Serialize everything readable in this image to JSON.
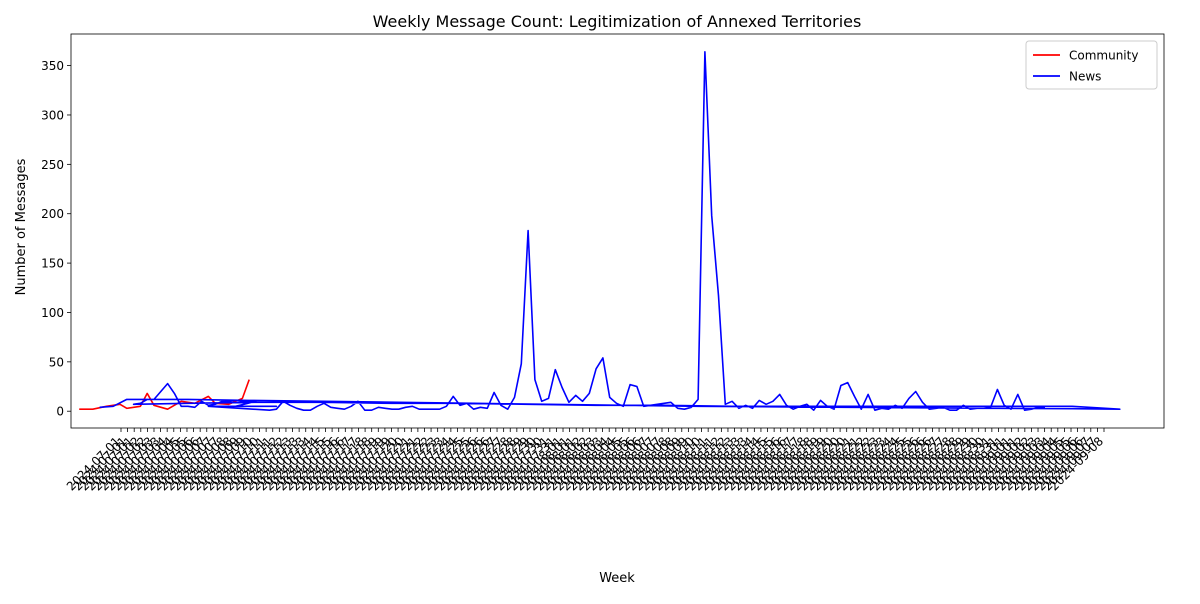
{
  "chart_data": {
    "type": "line",
    "title": "Weekly Message Count: Legitimization of Annexed Territories",
    "xlabel": "Week",
    "ylabel": "Number of Messages",
    "ylim": [
      -17,
      382
    ],
    "yticks": [
      0,
      50,
      100,
      150,
      200,
      250,
      300,
      350
    ],
    "grid": false,
    "legend_position": "top-right",
    "x_start_week": "2024-07-01",
    "x_end_week": "2024-09-08",
    "x_tick_count": 150,
    "series": [
      {
        "name": "Community",
        "color": "#ff0000",
        "points": [
          [
            0,
            2
          ],
          [
            2,
            2
          ],
          [
            4,
            5
          ],
          [
            6,
            7
          ],
          [
            7,
            3
          ],
          [
            9,
            5
          ],
          [
            10,
            18
          ],
          [
            11,
            6
          ],
          [
            13,
            2
          ],
          [
            15,
            10
          ],
          [
            17,
            8
          ],
          [
            19,
            15
          ],
          [
            20,
            8
          ],
          [
            22,
            7
          ],
          [
            24,
            13
          ],
          [
            25,
            32
          ]
        ]
      },
      {
        "name": "News",
        "color": "#0000ff",
        "points": [
          [
            3,
            4
          ],
          [
            5,
            5
          ],
          [
            7,
            12
          ],
          [
            16,
            12
          ],
          [
            25,
            11
          ],
          [
            36,
            10
          ],
          [
            47,
            9
          ],
          [
            58,
            8
          ],
          [
            69,
            7
          ],
          [
            80,
            6
          ],
          [
            91,
            5
          ],
          [
            102,
            4.5
          ],
          [
            113,
            4
          ],
          [
            124,
            3.5
          ],
          [
            135,
            3
          ],
          [
            146,
            2.5
          ],
          [
            153,
            2
          ],
          [
            146,
            5
          ],
          [
            136,
            5
          ],
          [
            126,
            5
          ],
          [
            116,
            5
          ],
          [
            106,
            5
          ],
          [
            96,
            5
          ],
          [
            86,
            6
          ],
          [
            76,
            6
          ],
          [
            66,
            7
          ],
          [
            56,
            8
          ],
          [
            46,
            8
          ],
          [
            36,
            9
          ],
          [
            26,
            9
          ],
          [
            16,
            8
          ],
          [
            8,
            7
          ],
          [
            9,
            8
          ],
          [
            10,
            12
          ],
          [
            11,
            12
          ],
          [
            12,
            20
          ],
          [
            13,
            28
          ],
          [
            14,
            18
          ],
          [
            15,
            5
          ],
          [
            16,
            5
          ],
          [
            17,
            4
          ],
          [
            18,
            10
          ],
          [
            19,
            6
          ],
          [
            20,
            7
          ],
          [
            21,
            10
          ],
          [
            22,
            10
          ],
          [
            23,
            11
          ],
          [
            24,
            10
          ],
          [
            25,
            10
          ],
          [
            26,
            10
          ],
          [
            23,
            5
          ],
          [
            26,
            5
          ],
          [
            28,
            5
          ],
          [
            29,
            5
          ],
          [
            23,
            5
          ],
          [
            22,
            5
          ],
          [
            21,
            5
          ],
          [
            20,
            5
          ],
          [
            19,
            5
          ],
          [
            28,
            1
          ],
          [
            29,
            2
          ],
          [
            30,
            10
          ],
          [
            31,
            6
          ],
          [
            32,
            3
          ],
          [
            33,
            1
          ],
          [
            34,
            1
          ],
          [
            35,
            5
          ],
          [
            36,
            8
          ],
          [
            37,
            4
          ],
          [
            38,
            3
          ],
          [
            39,
            2
          ],
          [
            40,
            5
          ],
          [
            41,
            10
          ],
          [
            42,
            1
          ],
          [
            43,
            1
          ],
          [
            44,
            4
          ],
          [
            45,
            3
          ],
          [
            46,
            2
          ],
          [
            47,
            2
          ],
          [
            48,
            4
          ],
          [
            49,
            5
          ],
          [
            50,
            2
          ],
          [
            51,
            2
          ],
          [
            52,
            2
          ],
          [
            53,
            2
          ],
          [
            54,
            5
          ],
          [
            55,
            15
          ],
          [
            56,
            6
          ],
          [
            57,
            8
          ],
          [
            58,
            2
          ],
          [
            59,
            4
          ],
          [
            60,
            3
          ],
          [
            61,
            19
          ],
          [
            62,
            6
          ],
          [
            63,
            2
          ],
          [
            64,
            14
          ],
          [
            65,
            48
          ],
          [
            66,
            183
          ],
          [
            67,
            32
          ],
          [
            68,
            10
          ],
          [
            69,
            13
          ],
          [
            70,
            42
          ],
          [
            71,
            24
          ],
          [
            72,
            9
          ],
          [
            73,
            16
          ],
          [
            74,
            10
          ],
          [
            75,
            18
          ],
          [
            76,
            43
          ],
          [
            77,
            54
          ],
          [
            78,
            14
          ],
          [
            79,
            8
          ],
          [
            80,
            5
          ],
          [
            81,
            27
          ],
          [
            82,
            25
          ],
          [
            83,
            5
          ],
          [
            84,
            6
          ],
          [
            85,
            7
          ],
          [
            86,
            8
          ],
          [
            87,
            9
          ],
          [
            88,
            3
          ],
          [
            89,
            2
          ],
          [
            90,
            4
          ],
          [
            91,
            12
          ],
          [
            92,
            364
          ],
          [
            93,
            198
          ],
          [
            94,
            117
          ],
          [
            95,
            7
          ],
          [
            96,
            10
          ],
          [
            97,
            3
          ],
          [
            98,
            6
          ],
          [
            99,
            3
          ],
          [
            100,
            11
          ],
          [
            101,
            7
          ],
          [
            102,
            10
          ],
          [
            103,
            17
          ],
          [
            104,
            6
          ],
          [
            105,
            2
          ],
          [
            106,
            5
          ],
          [
            107,
            7
          ],
          [
            108,
            1
          ],
          [
            109,
            11
          ],
          [
            110,
            5
          ],
          [
            111,
            2
          ],
          [
            112,
            26
          ],
          [
            113,
            29
          ],
          [
            114,
            15
          ],
          [
            115,
            2
          ],
          [
            116,
            17
          ],
          [
            117,
            1
          ],
          [
            118,
            3
          ],
          [
            119,
            2
          ],
          [
            120,
            6
          ],
          [
            121,
            3
          ],
          [
            122,
            13
          ],
          [
            123,
            20
          ],
          [
            124,
            9
          ],
          [
            125,
            2
          ],
          [
            126,
            3
          ],
          [
            127,
            4
          ],
          [
            128,
            1
          ],
          [
            129,
            1
          ],
          [
            130,
            6
          ],
          [
            131,
            2
          ],
          [
            132,
            3
          ],
          [
            133,
            3
          ],
          [
            134,
            4
          ],
          [
            135,
            22
          ],
          [
            136,
            6
          ],
          [
            137,
            2
          ],
          [
            138,
            17
          ],
          [
            139,
            1
          ],
          [
            140,
            2
          ],
          [
            141,
            4
          ],
          [
            142,
            4
          ]
        ]
      }
    ]
  }
}
